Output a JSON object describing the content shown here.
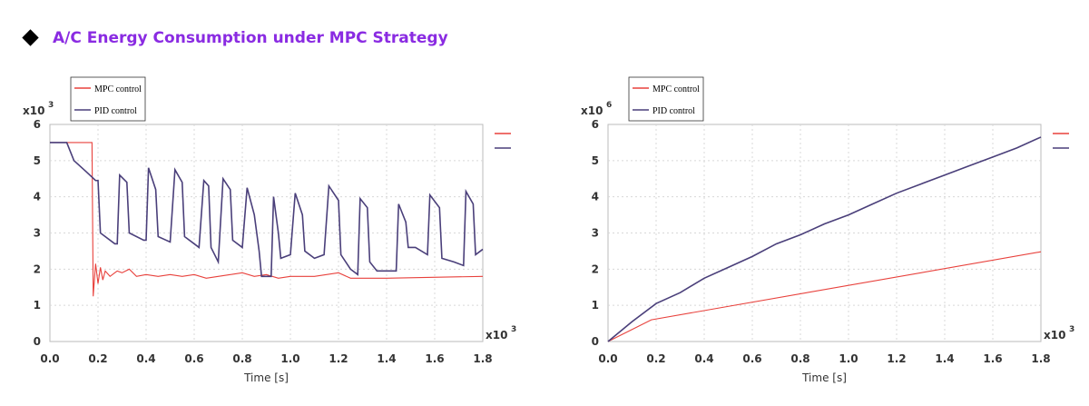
{
  "header": {
    "title": "A/C Energy Consumption under MPC Strategy"
  },
  "chart_data": [
    {
      "type": "line",
      "x_label": "Time [s]",
      "x_scale_label": "x10",
      "x_scale_exponent": "3",
      "y_scale_label": "x10",
      "y_scale_exponent": "3",
      "xlim": [
        0,
        1.8
      ],
      "ylim": [
        0,
        6
      ],
      "xticks": [
        {
          "value": 0,
          "label": "0.0"
        },
        0.2,
        0.4,
        0.6,
        0.8,
        {
          "value": 1,
          "label": "1.0"
        },
        1.2,
        1.4,
        1.6,
        1.8
      ],
      "yticks": [
        0,
        1,
        2,
        3,
        4,
        5,
        6
      ],
      "grid": true,
      "legend": "top-left",
      "series": [
        {
          "name": "MPC control",
          "color": "#e8413c",
          "x": [
            0,
            0.175,
            0.18,
            0.19,
            0.2,
            0.21,
            0.22,
            0.23,
            0.25,
            0.28,
            0.3,
            0.33,
            0.36,
            0.4,
            0.45,
            0.5,
            0.55,
            0.6,
            0.65,
            0.7,
            0.75,
            0.8,
            0.85,
            0.9,
            0.95,
            1.0,
            1.1,
            1.2,
            1.25,
            1.4,
            1.8
          ],
          "values": [
            5.5,
            5.5,
            1.25,
            2.15,
            1.6,
            2.05,
            1.7,
            1.95,
            1.8,
            1.95,
            1.9,
            2.0,
            1.8,
            1.85,
            1.8,
            1.85,
            1.8,
            1.85,
            1.75,
            1.8,
            1.85,
            1.9,
            1.8,
            1.85,
            1.75,
            1.8,
            1.8,
            1.9,
            1.75,
            1.75,
            1.8
          ]
        },
        {
          "name": "PID control",
          "color": "#4a3f7a",
          "x": [
            0,
            0.07,
            0.1,
            0.15,
            0.19,
            0.2,
            0.21,
            0.27,
            0.28,
            0.29,
            0.32,
            0.33,
            0.39,
            0.4,
            0.41,
            0.44,
            0.45,
            0.5,
            0.52,
            0.55,
            0.56,
            0.6,
            0.62,
            0.64,
            0.66,
            0.67,
            0.7,
            0.72,
            0.75,
            0.76,
            0.8,
            0.82,
            0.85,
            0.87,
            0.88,
            0.92,
            0.93,
            0.95,
            0.96,
            1.0,
            1.02,
            1.05,
            1.06,
            1.1,
            1.14,
            1.16,
            1.2,
            1.21,
            1.25,
            1.28,
            1.29,
            1.32,
            1.33,
            1.36,
            1.44,
            1.45,
            1.48,
            1.49,
            1.52,
            1.57,
            1.58,
            1.62,
            1.63,
            1.68,
            1.72,
            1.73,
            1.76,
            1.77,
            1.8
          ],
          "values": [
            5.5,
            5.5,
            5.0,
            4.7,
            4.45,
            4.45,
            3.0,
            2.7,
            2.7,
            4.6,
            4.4,
            3.0,
            2.8,
            2.8,
            4.8,
            4.2,
            2.9,
            2.75,
            4.75,
            4.4,
            2.9,
            2.7,
            2.6,
            4.45,
            4.3,
            2.6,
            2.2,
            4.5,
            4.2,
            2.8,
            2.6,
            4.25,
            3.5,
            2.5,
            1.8,
            1.8,
            4.0,
            3.0,
            2.3,
            2.4,
            4.1,
            3.5,
            2.5,
            2.3,
            2.4,
            4.3,
            3.9,
            2.4,
            2.0,
            1.85,
            3.95,
            3.7,
            2.2,
            1.95,
            1.95,
            3.8,
            3.3,
            2.6,
            2.6,
            2.4,
            4.05,
            3.7,
            2.3,
            2.2,
            2.1,
            4.15,
            3.8,
            2.4,
            2.55
          ]
        }
      ]
    },
    {
      "type": "line",
      "x_label": "Time [s]",
      "x_scale_label": "x10",
      "x_scale_exponent": "3",
      "y_scale_label": "x10",
      "y_scale_exponent": "6",
      "xlim": [
        0,
        1.8
      ],
      "ylim": [
        0,
        6
      ],
      "xticks": [
        {
          "value": 0,
          "label": "0.0"
        },
        0.2,
        0.4,
        0.6,
        0.8,
        {
          "value": 1,
          "label": "1.0"
        },
        1.2,
        1.4,
        1.6,
        1.8
      ],
      "yticks": [
        0,
        1,
        2,
        3,
        4,
        5,
        6
      ],
      "grid": true,
      "legend": "top-left",
      "series": [
        {
          "name": "MPC control",
          "color": "#e8413c",
          "x": [
            0,
            0.18,
            1.8
          ],
          "values": [
            0,
            0.6,
            2.48
          ]
        },
        {
          "name": "PID control",
          "color": "#4a3f7a",
          "x": [
            0,
            0.1,
            0.2,
            0.3,
            0.4,
            0.5,
            0.6,
            0.7,
            0.8,
            0.9,
            1.0,
            1.1,
            1.2,
            1.3,
            1.4,
            1.5,
            1.6,
            1.7,
            1.8
          ],
          "values": [
            0,
            0.55,
            1.05,
            1.35,
            1.75,
            2.05,
            2.35,
            2.7,
            2.95,
            3.25,
            3.5,
            3.8,
            4.1,
            4.35,
            4.6,
            4.85,
            5.1,
            5.35,
            5.65
          ]
        }
      ]
    }
  ]
}
